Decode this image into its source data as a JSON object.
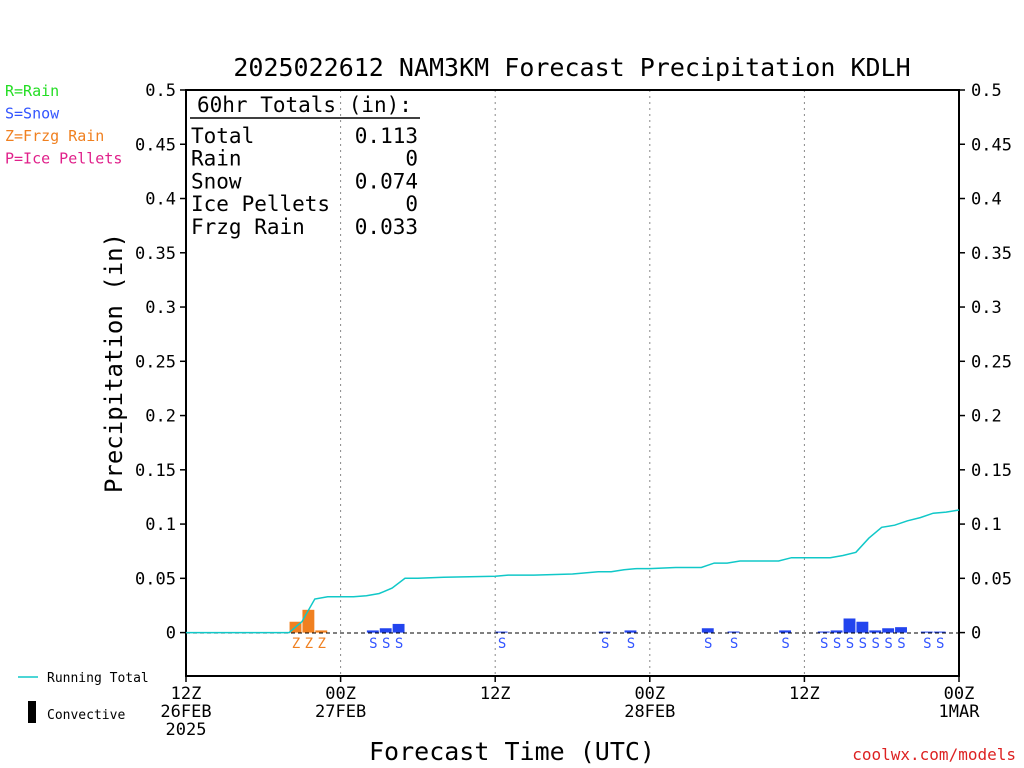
{
  "chart_data": {
    "type": "bar",
    "title": "2025022612 NAM3KM Forecast Precipitation KDLH",
    "ylabel": "Precipitation (in)",
    "xlabel": "Forecast Time (UTC)",
    "ylim": [
      -0.04,
      0.5
    ],
    "xlim_hours": [
      0,
      60
    ],
    "yticks": [
      0,
      0.05,
      0.1,
      0.15,
      0.2,
      0.25,
      0.3,
      0.35,
      0.4,
      0.45,
      0.5
    ],
    "ytick_labels": [
      "0",
      "0.05",
      "0.1",
      "0.15",
      "0.2",
      "0.25",
      "0.3",
      "0.35",
      "0.4",
      "0.45",
      "0.5"
    ],
    "xticks": [
      {
        "hour": 0,
        "line1": "12Z",
        "line2": "26FEB",
        "line3": "2025"
      },
      {
        "hour": 12,
        "line1": "00Z",
        "line2": "27FEB",
        "line3": ""
      },
      {
        "hour": 24,
        "line1": "12Z",
        "line2": "",
        "line3": ""
      },
      {
        "hour": 36,
        "line1": "00Z",
        "line2": "28FEB",
        "line3": ""
      },
      {
        "hour": 48,
        "line1": "12Z",
        "line2": "",
        "line3": ""
      },
      {
        "hour": 60,
        "line1": "00Z",
        "line2": "1MAR",
        "line3": ""
      }
    ],
    "legend": [
      {
        "label": "R=Rain",
        "color": "#22dd22"
      },
      {
        "label": "S=Snow",
        "color": "#3355ff"
      },
      {
        "label": "Z=Frzg Rain",
        "color": "#f08020"
      },
      {
        "label": "P=Ice Pellets",
        "color": "#e0208a"
      }
    ],
    "legend_bottom": [
      {
        "label": "Running Total",
        "color": "#10c8c8"
      },
      {
        "label": "Convective",
        "color": "#000000"
      }
    ],
    "totals": {
      "header": "60hr Totals (in):",
      "rows": [
        {
          "label": "Total",
          "value": "0.113"
        },
        {
          "label": "Rain",
          "value": "0"
        },
        {
          "label": "Snow",
          "value": "0.074"
        },
        {
          "label": "Ice Pellets",
          "value": "0"
        },
        {
          "label": "Frzg Rain",
          "value": "0.033"
        }
      ]
    },
    "hourly_bars": [
      {
        "hour": 9,
        "value": 0.01,
        "type": "Z"
      },
      {
        "hour": 10,
        "value": 0.021,
        "type": "Z"
      },
      {
        "hour": 11,
        "value": 0.002,
        "type": "Z"
      },
      {
        "hour": 15,
        "value": 0.002,
        "type": "S"
      },
      {
        "hour": 16,
        "value": 0.004,
        "type": "S"
      },
      {
        "hour": 17,
        "value": 0.008,
        "type": "S"
      },
      {
        "hour": 25,
        "value": 0.0005,
        "type": "S"
      },
      {
        "hour": 33,
        "value": 0.0005,
        "type": "S"
      },
      {
        "hour": 35,
        "value": 0.002,
        "type": "S"
      },
      {
        "hour": 41,
        "value": 0.004,
        "type": "S"
      },
      {
        "hour": 43,
        "value": 0.001,
        "type": "S"
      },
      {
        "hour": 47,
        "value": 0.002,
        "type": "S"
      },
      {
        "hour": 50,
        "value": 0.001,
        "type": "S"
      },
      {
        "hour": 51,
        "value": 0.002,
        "type": "S"
      },
      {
        "hour": 52,
        "value": 0.013,
        "type": "S"
      },
      {
        "hour": 53,
        "value": 0.01,
        "type": "S"
      },
      {
        "hour": 54,
        "value": 0.002,
        "type": "S"
      },
      {
        "hour": 55,
        "value": 0.004,
        "type": "S"
      },
      {
        "hour": 56,
        "value": 0.005,
        "type": "S"
      },
      {
        "hour": 58,
        "value": 0.0005,
        "type": "S"
      },
      {
        "hour": 59,
        "value": 0.0005,
        "type": "S"
      }
    ],
    "running_total": {
      "x": [
        0,
        8,
        9,
        10,
        11,
        12,
        13,
        14,
        15,
        16,
        17,
        18,
        20,
        24,
        25,
        27,
        30,
        31,
        32,
        33,
        34,
        35,
        36,
        38,
        40,
        41,
        42,
        43,
        44,
        46,
        47,
        48,
        50,
        51,
        52,
        53,
        54,
        55,
        56,
        57,
        58,
        59,
        60
      ],
      "y": [
        0,
        0,
        0.01,
        0.031,
        0.033,
        0.033,
        0.033,
        0.034,
        0.036,
        0.041,
        0.05,
        0.05,
        0.051,
        0.052,
        0.053,
        0.053,
        0.054,
        0.055,
        0.056,
        0.056,
        0.058,
        0.059,
        0.059,
        0.06,
        0.06,
        0.064,
        0.064,
        0.066,
        0.066,
        0.066,
        0.069,
        0.069,
        0.069,
        0.071,
        0.074,
        0.087,
        0.097,
        0.099,
        0.103,
        0.106,
        0.11,
        0.111,
        0.113
      ]
    },
    "grid": "vertical dotted at 00Z/12Z",
    "watermark": "coolwx.com/models"
  }
}
